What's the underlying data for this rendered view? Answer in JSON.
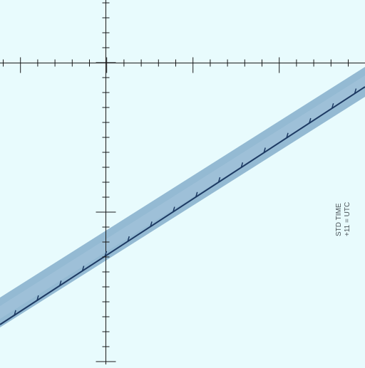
{
  "map": {
    "background_color": "#e8fbfd",
    "grid_color": "#1a1a1a",
    "band_fill_color": "#8fb6d1",
    "band_edge_color": "#1d3a63",
    "tile_label": {
      "line1": "STD TIME",
      "line2": "+11 = UTC"
    }
  }
}
